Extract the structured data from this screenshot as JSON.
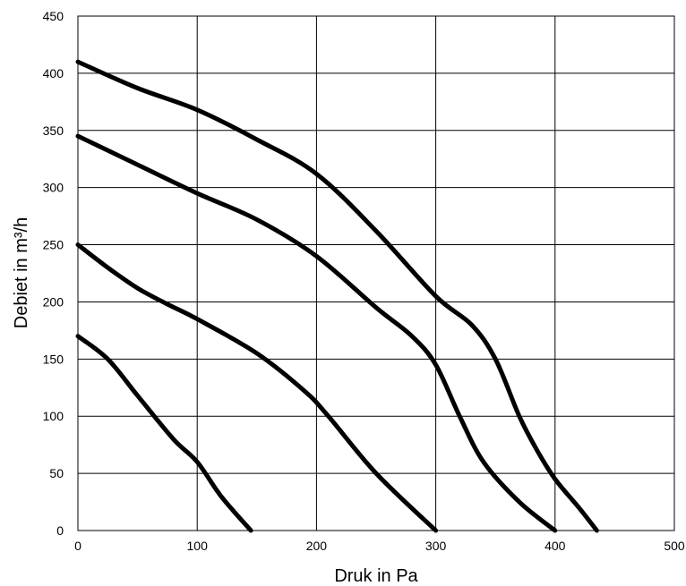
{
  "chart_data": {
    "type": "line",
    "title": "",
    "xlabel": "Druk in Pa",
    "ylabel": "Debiet in m³/h",
    "xlim": [
      0,
      500
    ],
    "ylim": [
      0,
      450
    ],
    "x_ticks": [
      "0",
      "100",
      "200",
      "300",
      "400",
      "500"
    ],
    "y_ticks": [
      "0",
      "50",
      "100",
      "150",
      "200",
      "250",
      "300",
      "350",
      "400",
      "450"
    ],
    "grid": true,
    "line_color": "#000000",
    "series": [
      {
        "x": [
          0,
          25,
          50,
          80,
          100,
          120,
          145
        ],
        "y": [
          170,
          150,
          118,
          80,
          60,
          30,
          0
        ]
      },
      {
        "x": [
          0,
          25,
          50,
          75,
          100,
          150,
          190,
          210,
          250,
          300
        ],
        "y": [
          250,
          230,
          212,
          198,
          185,
          155,
          122,
          100,
          50,
          0
        ]
      },
      {
        "x": [
          0,
          50,
          100,
          150,
          200,
          250,
          280,
          300,
          320,
          340,
          370,
          400
        ],
        "y": [
          345,
          320,
          295,
          272,
          240,
          195,
          170,
          145,
          100,
          60,
          25,
          0
        ]
      },
      {
        "x": [
          0,
          50,
          100,
          150,
          200,
          250,
          300,
          330,
          350,
          370,
          385,
          400,
          420,
          435
        ],
        "y": [
          410,
          387,
          368,
          342,
          312,
          262,
          205,
          180,
          150,
          100,
          70,
          45,
          20,
          0
        ]
      }
    ]
  }
}
